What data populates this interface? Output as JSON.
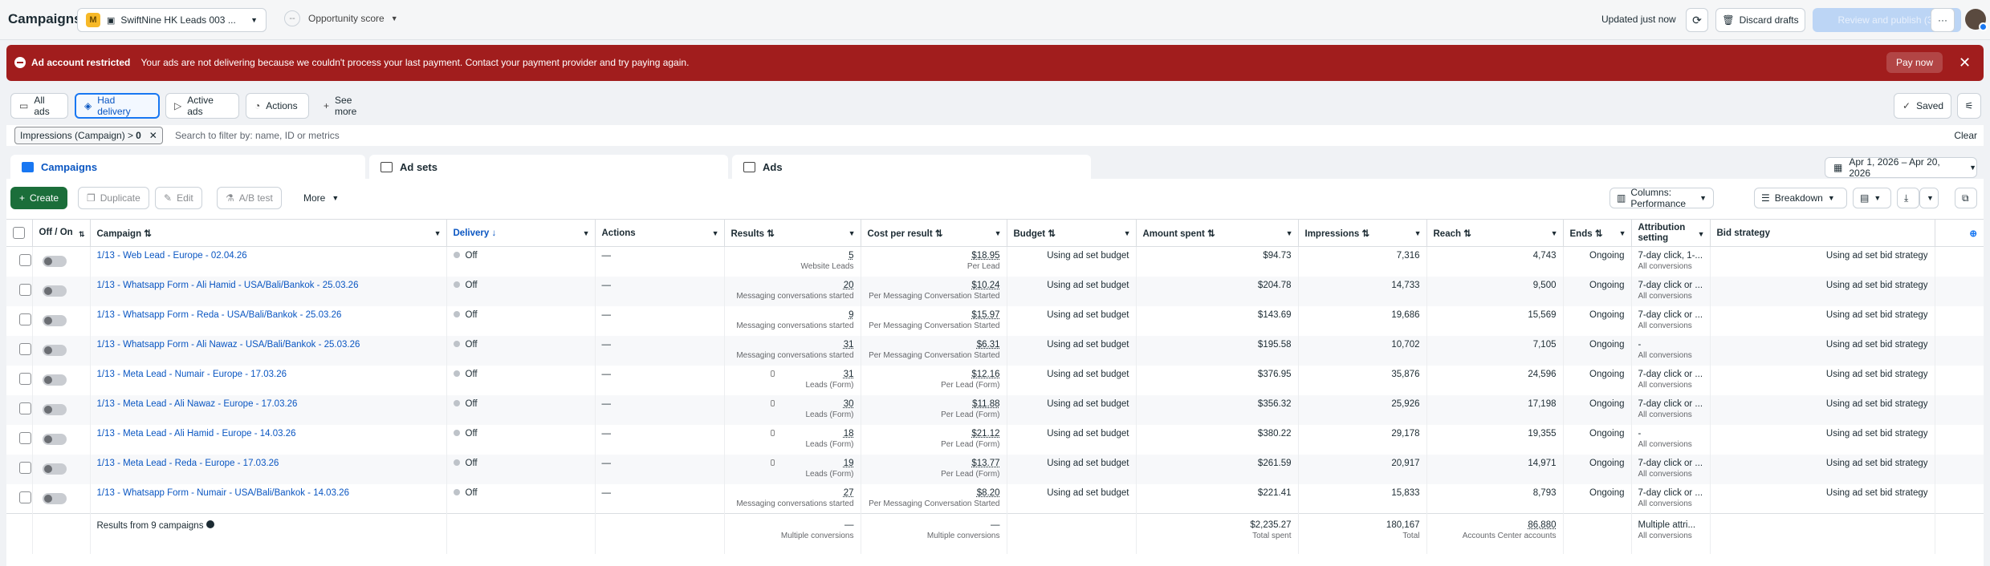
{
  "topbar": {
    "title": "Campaigns",
    "account_badge": "M",
    "account_name": "SwiftNine HK Leads 003 ...",
    "opportunity": "Opportunity score",
    "opportunity_value": "--",
    "updated": "Updated just now",
    "discard": "Discard drafts",
    "review": "Review and publish (3)",
    "more": "···"
  },
  "alert": {
    "title": "Ad account restricted",
    "message": "Your ads are not delivering because we couldn't process your last payment. Contact your payment provider and try paying again.",
    "pay": "Pay now"
  },
  "filters": {
    "all_ads": "All ads",
    "had_delivery": "Had delivery",
    "active_ads": "Active ads",
    "actions": "Actions",
    "see_more": "See more",
    "saved": "Saved"
  },
  "search": {
    "chip": "Impressions (Campaign) > ",
    "chip_value": "0",
    "placeholder": "Search to filter by: name, ID or metrics",
    "clear": "Clear"
  },
  "levels": {
    "campaigns": "Campaigns",
    "adsets": "Ad sets",
    "ads": "Ads",
    "date_range": "Apr 1, 2026 – Apr 20, 2026"
  },
  "toolbar": {
    "create": "Create",
    "duplicate": "Duplicate",
    "edit": "Edit",
    "ab_test": "A/B test",
    "more": "More",
    "columns": "Columns: Performance",
    "breakdown": "Breakdown"
  },
  "columns": {
    "onoff": "Off / On",
    "campaign": "Campaign",
    "delivery": "Delivery",
    "actions": "Actions",
    "results": "Results",
    "cpr": "Cost per result",
    "budget": "Budget",
    "spent": "Amount spent",
    "impressions": "Impressions",
    "reach": "Reach",
    "ends": "Ends",
    "attribution": "Attribution setting",
    "bid": "Bid strategy"
  },
  "rows": [
    {
      "name": "1/13 - Web Lead - Europe - 02.04.26",
      "delivery": "Off",
      "actions": "—",
      "results": "5",
      "results_sub": "Website Leads",
      "cpr": "$18.95",
      "cpr_sub": "Per Lead",
      "budget": "Using ad set budget",
      "spent": "$94.73",
      "impressions": "7,316",
      "reach": "4,743",
      "ends": "Ongoing",
      "attr": "7-day click, 1-...",
      "attr_sub": "All conversions",
      "bid": "Using ad set bid strategy",
      "lead": false
    },
    {
      "name": "1/13 - Whatsapp Form - Ali Hamid - USA/Bali/Bankok - 25.03.26",
      "delivery": "Off",
      "actions": "—",
      "results": "20",
      "results_sub": "Messaging conversations started",
      "cpr": "$10.24",
      "cpr_sub": "Per Messaging Conversation Started",
      "budget": "Using ad set budget",
      "spent": "$204.78",
      "impressions": "14,733",
      "reach": "9,500",
      "ends": "Ongoing",
      "attr": "7-day click or ...",
      "attr_sub": "All conversions",
      "bid": "Using ad set bid strategy",
      "lead": false
    },
    {
      "name": "1/13 - Whatsapp Form - Reda - USA/Bali/Bankok - 25.03.26",
      "delivery": "Off",
      "actions": "—",
      "results": "9",
      "results_sub": "Messaging conversations started",
      "cpr": "$15.97",
      "cpr_sub": "Per Messaging Conversation Started",
      "budget": "Using ad set budget",
      "spent": "$143.69",
      "impressions": "19,686",
      "reach": "15,569",
      "ends": "Ongoing",
      "attr": "7-day click or ...",
      "attr_sub": "All conversions",
      "bid": "Using ad set bid strategy",
      "lead": false
    },
    {
      "name": "1/13 - Whatsapp Form - Ali Nawaz - USA/Bali/Bankok - 25.03.26",
      "delivery": "Off",
      "actions": "—",
      "results": "31",
      "results_sub": "Messaging conversations started",
      "cpr": "$6.31",
      "cpr_sub": "Per Messaging Conversation Started",
      "budget": "Using ad set budget",
      "spent": "$195.58",
      "impressions": "10,702",
      "reach": "7,105",
      "ends": "Ongoing",
      "attr": "-",
      "attr_sub": "All conversions",
      "bid": "Using ad set bid strategy",
      "lead": false
    },
    {
      "name": "1/13 - Meta Lead - Numair - Europe - 17.03.26",
      "delivery": "Off",
      "actions": "—",
      "results": "31",
      "results_sub": "Leads (Form)",
      "cpr": "$12.16",
      "cpr_sub": "Per Lead (Form)",
      "budget": "Using ad set budget",
      "spent": "$376.95",
      "impressions": "35,876",
      "reach": "24,596",
      "ends": "Ongoing",
      "attr": "7-day click or ...",
      "attr_sub": "All conversions",
      "bid": "Using ad set bid strategy",
      "lead": true
    },
    {
      "name": "1/13 - Meta Lead - Ali Nawaz - Europe - 17.03.26",
      "delivery": "Off",
      "actions": "—",
      "results": "30",
      "results_sub": "Leads (Form)",
      "cpr": "$11.88",
      "cpr_sub": "Per Lead (Form)",
      "budget": "Using ad set budget",
      "spent": "$356.32",
      "impressions": "25,926",
      "reach": "17,198",
      "ends": "Ongoing",
      "attr": "7-day click or ...",
      "attr_sub": "All conversions",
      "bid": "Using ad set bid strategy",
      "lead": true
    },
    {
      "name": "1/13 - Meta Lead - Ali Hamid - Europe - 14.03.26",
      "delivery": "Off",
      "actions": "—",
      "results": "18",
      "results_sub": "Leads (Form)",
      "cpr": "$21.12",
      "cpr_sub": "Per Lead (Form)",
      "budget": "Using ad set budget",
      "spent": "$380.22",
      "impressions": "29,178",
      "reach": "19,355",
      "ends": "Ongoing",
      "attr": "-",
      "attr_sub": "All conversions",
      "bid": "Using ad set bid strategy",
      "lead": true
    },
    {
      "name": "1/13 - Meta Lead - Reda - Europe - 17.03.26",
      "delivery": "Off",
      "actions": "—",
      "results": "19",
      "results_sub": "Leads (Form)",
      "cpr": "$13.77",
      "cpr_sub": "Per Lead (Form)",
      "budget": "Using ad set budget",
      "spent": "$261.59",
      "impressions": "20,917",
      "reach": "14,971",
      "ends": "Ongoing",
      "attr": "7-day click or ...",
      "attr_sub": "All conversions",
      "bid": "Using ad set bid strategy",
      "lead": true
    },
    {
      "name": "1/13 - Whatsapp Form - Numair - USA/Bali/Bankok - 14.03.26",
      "delivery": "Off",
      "actions": "—",
      "results": "27",
      "results_sub": "Messaging conversations started",
      "cpr": "$8.20",
      "cpr_sub": "Per Messaging Conversation Started",
      "budget": "Using ad set budget",
      "spent": "$221.41",
      "impressions": "15,833",
      "reach": "8,793",
      "ends": "Ongoing",
      "attr": "7-day click or ...",
      "attr_sub": "All conversions",
      "bid": "Using ad set bid strategy",
      "lead": false
    }
  ],
  "totals": {
    "label": "Results from 9 campaigns",
    "results": "—",
    "results_sub": "Multiple conversions",
    "cpr": "—",
    "cpr_sub": "Multiple conversions",
    "spent": "$2,235.27",
    "spent_sub": "Total spent",
    "impressions": "180,167",
    "impressions_sub": "Total",
    "reach": "86,880",
    "reach_sub": "Accounts Center accounts",
    "attr": "Multiple attri...",
    "attr_sub": "All conversions"
  }
}
